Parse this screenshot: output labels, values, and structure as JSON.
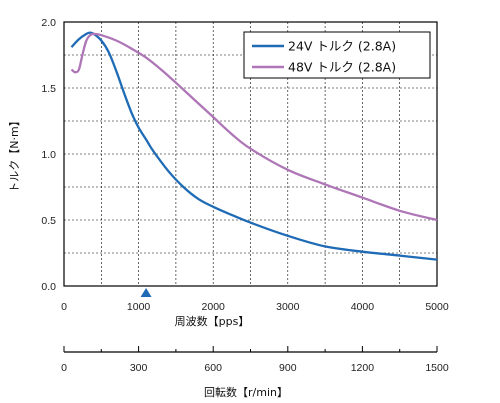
{
  "chart_data": {
    "type": "line",
    "ylabel": "トルク【N·m】",
    "xlabel": "周波数【pps】",
    "x2label": "回転数【r/min】",
    "xlim": [
      0,
      5000
    ],
    "ylim": [
      0,
      2.0
    ],
    "x_ticks": [
      "0",
      "1000",
      "2000",
      "3000",
      "4000",
      "5000"
    ],
    "y_ticks": [
      "0.0",
      "0.5",
      "1.0",
      "1.5",
      "2.0"
    ],
    "x2lim": [
      0,
      1500
    ],
    "x2_ticks": [
      "0",
      "300",
      "600",
      "900",
      "1200",
      "1500"
    ],
    "grid": true,
    "legend_position": "top-right",
    "marker_x": 1100,
    "series": [
      {
        "name": "24V トルク (2.8A)",
        "color": "#1f6bb5",
        "x": [
          100,
          200,
          300,
          350,
          400,
          500,
          600,
          700,
          800,
          900,
          1000,
          1100,
          1200,
          1400,
          1600,
          1800,
          2000,
          2200,
          2500,
          3000,
          3500,
          4000,
          4500,
          5000
        ],
        "y": [
          1.81,
          1.87,
          1.91,
          1.92,
          1.91,
          1.86,
          1.77,
          1.63,
          1.47,
          1.32,
          1.2,
          1.11,
          1.02,
          0.87,
          0.75,
          0.66,
          0.6,
          0.55,
          0.48,
          0.38,
          0.3,
          0.26,
          0.23,
          0.2
        ]
      },
      {
        "name": "48V トルク (2.8A)",
        "color": "#ae76b6",
        "x": [
          100,
          150,
          200,
          250,
          300,
          350,
          400,
          500,
          700,
          900,
          1100,
          1300,
          1500,
          1750,
          2000,
          2250,
          2500,
          3000,
          3500,
          4000,
          4500,
          5000
        ],
        "y": [
          1.64,
          1.62,
          1.64,
          1.76,
          1.86,
          1.9,
          1.91,
          1.9,
          1.86,
          1.8,
          1.73,
          1.64,
          1.54,
          1.41,
          1.28,
          1.15,
          1.04,
          0.88,
          0.77,
          0.67,
          0.57,
          0.5
        ]
      }
    ]
  }
}
